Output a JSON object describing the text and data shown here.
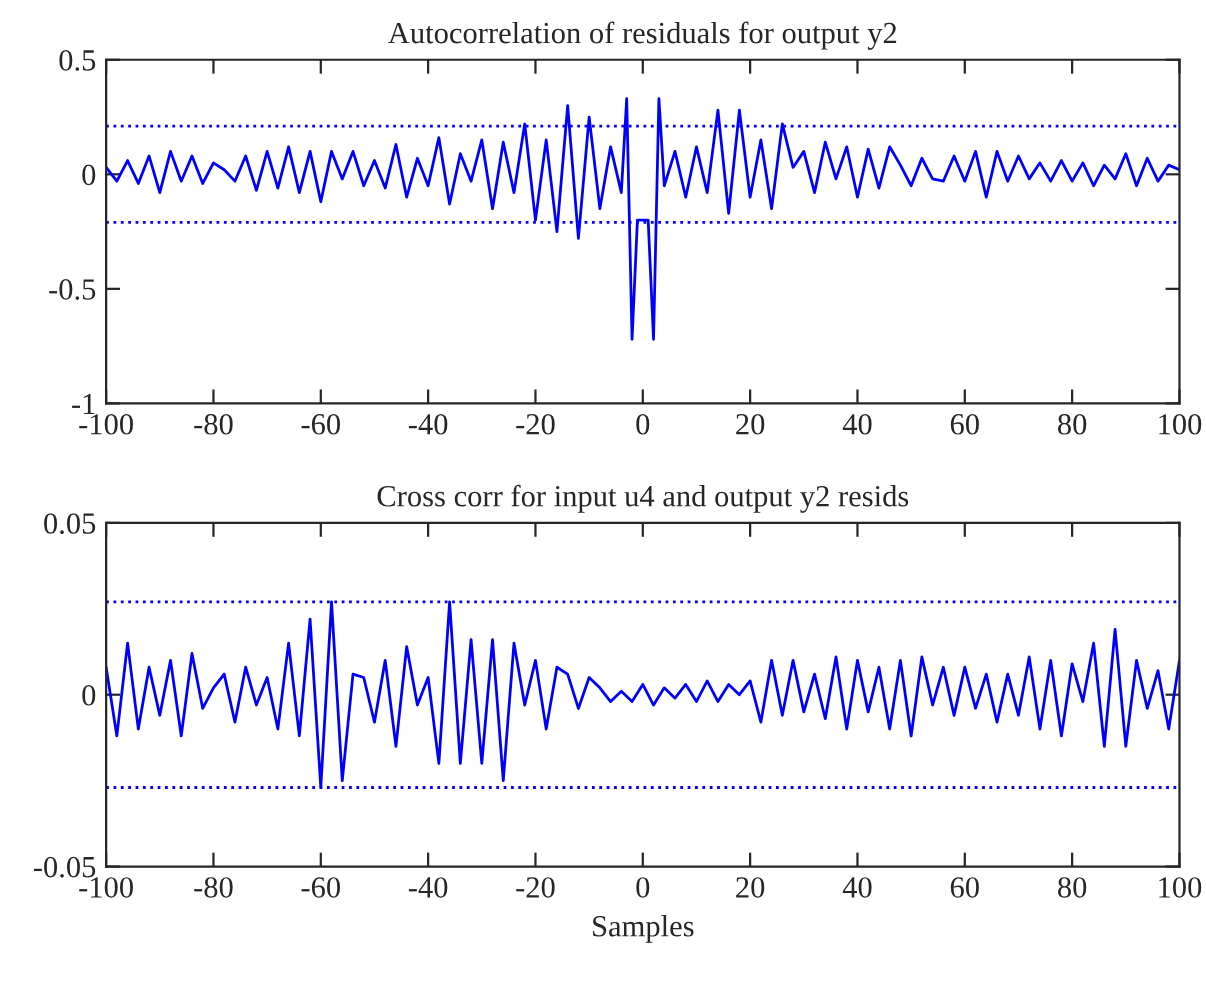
{
  "chart_data": [
    {
      "type": "line",
      "title": "Autocorrelation of residuals for output y2",
      "xlim": [
        -100,
        100
      ],
      "xticks": [
        -100,
        -80,
        -60,
        -40,
        -20,
        0,
        20,
        40,
        60,
        80,
        100
      ],
      "ylim": [
        -1,
        0.5
      ],
      "yticks": [
        -1,
        -0.5,
        0,
        0.5
      ],
      "grid": false,
      "legend": false,
      "marker": "none",
      "line_style": "solid",
      "ref_lines": [
        {
          "axis": "y",
          "value": 0.21,
          "color": "#0000ff",
          "line_style": "dotted"
        },
        {
          "axis": "y",
          "value": -0.21,
          "color": "#0000ff",
          "line_style": "dotted"
        }
      ],
      "series": [
        {
          "color": "#0000ff",
          "x": [
            -100,
            -98,
            -96,
            -94,
            -92,
            -90,
            -88,
            -86,
            -84,
            -82,
            -80,
            -78,
            -76,
            -74,
            -72,
            -70,
            -68,
            -66,
            -64,
            -62,
            -60,
            -58,
            -56,
            -54,
            -52,
            -50,
            -48,
            -46,
            -44,
            -42,
            -40,
            -38,
            -36,
            -34,
            -32,
            -30,
            -28,
            -26,
            -24,
            -22,
            -20,
            -18,
            -16,
            -14,
            -12,
            -10,
            -8,
            -6,
            -4,
            -3,
            -2,
            -1,
            0,
            1,
            2,
            3,
            4,
            6,
            8,
            10,
            12,
            14,
            16,
            18,
            20,
            22,
            24,
            26,
            28,
            30,
            32,
            34,
            36,
            38,
            40,
            42,
            44,
            46,
            48,
            50,
            52,
            54,
            56,
            58,
            60,
            62,
            64,
            66,
            68,
            70,
            72,
            74,
            76,
            78,
            80,
            82,
            84,
            86,
            88,
            90,
            92,
            94,
            96,
            98,
            100
          ],
          "values": [
            0.03,
            -0.03,
            0.06,
            -0.04,
            0.08,
            -0.08,
            0.1,
            -0.03,
            0.08,
            -0.04,
            0.05,
            0.02,
            -0.03,
            0.08,
            -0.07,
            0.1,
            -0.06,
            0.12,
            -0.08,
            0.1,
            -0.12,
            0.1,
            -0.02,
            0.1,
            -0.05,
            0.06,
            -0.06,
            0.13,
            -0.1,
            0.07,
            -0.05,
            0.16,
            -0.13,
            0.09,
            -0.03,
            0.15,
            -0.15,
            0.14,
            -0.08,
            0.22,
            -0.2,
            0.15,
            -0.25,
            0.3,
            -0.28,
            0.25,
            -0.15,
            0.12,
            -0.08,
            0.33,
            -0.72,
            -0.2,
            -0.2,
            -0.2,
            -0.72,
            0.33,
            -0.05,
            0.1,
            -0.1,
            0.12,
            -0.08,
            0.28,
            -0.17,
            0.28,
            -0.1,
            0.15,
            -0.15,
            0.22,
            0.03,
            0.1,
            -0.08,
            0.14,
            -0.02,
            0.12,
            -0.1,
            0.11,
            -0.06,
            0.12,
            0.04,
            -0.05,
            0.07,
            -0.02,
            -0.03,
            0.08,
            -0.03,
            0.1,
            -0.1,
            0.1,
            -0.03,
            0.08,
            -0.02,
            0.05,
            -0.03,
            0.06,
            -0.03,
            0.05,
            -0.05,
            0.04,
            -0.02,
            0.09,
            -0.05,
            0.07,
            -0.03,
            0.04,
            0.02
          ]
        }
      ]
    },
    {
      "type": "line",
      "title": "Cross corr for input u4 and output y2 resids",
      "xlabel": "Samples",
      "xlim": [
        -100,
        100
      ],
      "xticks": [
        -100,
        -80,
        -60,
        -40,
        -20,
        0,
        20,
        40,
        60,
        80,
        100
      ],
      "ylim": [
        -0.05,
        0.05
      ],
      "yticks": [
        -0.05,
        0,
        0.05
      ],
      "grid": false,
      "legend": false,
      "marker": "none",
      "line_style": "solid",
      "ref_lines": [
        {
          "axis": "y",
          "value": 0.027,
          "color": "#0000ff",
          "line_style": "dotted"
        },
        {
          "axis": "y",
          "value": -0.027,
          "color": "#0000ff",
          "line_style": "dotted"
        }
      ],
      "series": [
        {
          "color": "#0000ff",
          "x": [
            -100,
            -98,
            -96,
            -94,
            -92,
            -90,
            -88,
            -86,
            -84,
            -82,
            -80,
            -78,
            -76,
            -74,
            -72,
            -70,
            -68,
            -66,
            -64,
            -62,
            -60,
            -58,
            -56,
            -54,
            -52,
            -50,
            -48,
            -46,
            -44,
            -42,
            -40,
            -38,
            -36,
            -34,
            -32,
            -30,
            -28,
            -26,
            -24,
            -22,
            -20,
            -18,
            -16,
            -14,
            -12,
            -10,
            -8,
            -6,
            -4,
            -2,
            0,
            2,
            4,
            6,
            8,
            10,
            12,
            14,
            16,
            18,
            20,
            22,
            24,
            26,
            28,
            30,
            32,
            34,
            36,
            38,
            40,
            42,
            44,
            46,
            48,
            50,
            52,
            54,
            56,
            58,
            60,
            62,
            64,
            66,
            68,
            70,
            72,
            74,
            76,
            78,
            80,
            82,
            84,
            86,
            88,
            90,
            92,
            94,
            96,
            98,
            100
          ],
          "values": [
            0.008,
            -0.012,
            0.015,
            -0.01,
            0.008,
            -0.006,
            0.01,
            -0.012,
            0.012,
            -0.004,
            0.002,
            0.006,
            -0.008,
            0.008,
            -0.003,
            0.005,
            -0.01,
            0.015,
            -0.012,
            0.022,
            -0.027,
            0.027,
            -0.025,
            0.006,
            0.005,
            -0.008,
            0.01,
            -0.015,
            0.014,
            -0.003,
            0.005,
            -0.02,
            0.027,
            -0.02,
            0.016,
            -0.02,
            0.016,
            -0.025,
            0.015,
            -0.003,
            0.01,
            -0.01,
            0.008,
            0.006,
            -0.004,
            0.005,
            0.002,
            -0.002,
            0.001,
            -0.002,
            0.003,
            -0.003,
            0.002,
            -0.001,
            0.003,
            -0.002,
            0.004,
            -0.002,
            0.003,
            0,
            0.004,
            -0.008,
            0.01,
            -0.006,
            0.01,
            -0.005,
            0.006,
            -0.007,
            0.011,
            -0.01,
            0.01,
            -0.005,
            0.008,
            -0.01,
            0.01,
            -0.012,
            0.011,
            -0.003,
            0.008,
            -0.006,
            0.008,
            -0.004,
            0.006,
            -0.008,
            0.006,
            -0.006,
            0.011,
            -0.01,
            0.01,
            -0.012,
            0.009,
            -0.002,
            0.015,
            -0.015,
            0.019,
            -0.015,
            0.01,
            -0.004,
            0.007,
            -0.01,
            0.01
          ]
        }
      ]
    }
  ]
}
